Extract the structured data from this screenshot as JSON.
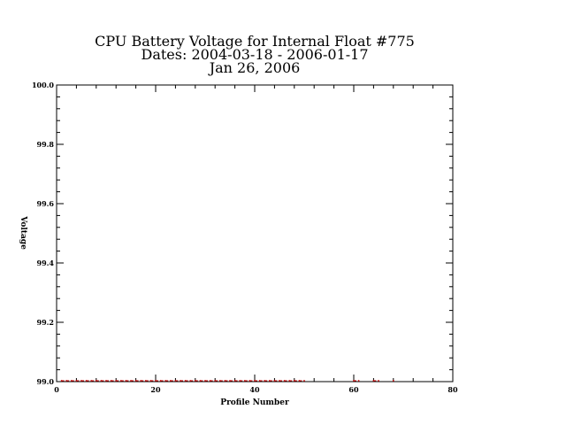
{
  "chart_data": {
    "type": "line",
    "title_lines": [
      "CPU Battery Voltage for Internal Float #775",
      "Dates:  2004-03-18 -  2006-01-17",
      "Jan 26, 2006"
    ],
    "xlabel": "Profile Number",
    "ylabel": "Voltage",
    "xlim": [
      0,
      80
    ],
    "ylim": [
      99.0,
      100.0
    ],
    "x_ticks": [
      0,
      20,
      40,
      60,
      80
    ],
    "x_tick_labels": [
      "0",
      "20",
      "40",
      "60",
      "80"
    ],
    "y_ticks": [
      99.0,
      99.2,
      99.4,
      99.6,
      99.8,
      100.0
    ],
    "y_tick_labels": [
      "99.0",
      "99.2",
      "99.4",
      "99.6",
      "99.8",
      "100.0"
    ],
    "grid": false,
    "series": [
      {
        "color": "#cc0000",
        "x": [
          1,
          2,
          3,
          4,
          5,
          6,
          7,
          8,
          9,
          10,
          11,
          12,
          13,
          14,
          15,
          16,
          17,
          18,
          19,
          20,
          21,
          22,
          23,
          24,
          25,
          26,
          27,
          28,
          29,
          30,
          31,
          32,
          33,
          34,
          35,
          36,
          37,
          38,
          39,
          40,
          41,
          42,
          43,
          44,
          45,
          46,
          47,
          48,
          49,
          50,
          60,
          61,
          64,
          65,
          68
        ],
        "y": [
          99.0,
          99.0,
          99.0,
          99.0,
          99.0,
          99.0,
          99.0,
          99.0,
          99.0,
          99.0,
          99.0,
          99.0,
          99.0,
          99.0,
          99.0,
          99.0,
          99.0,
          99.0,
          99.0,
          99.0,
          99.0,
          99.0,
          99.0,
          99.0,
          99.0,
          99.0,
          99.0,
          99.0,
          99.0,
          99.0,
          99.0,
          99.0,
          99.0,
          99.0,
          99.0,
          99.0,
          99.0,
          99.0,
          99.0,
          99.0,
          99.0,
          99.0,
          99.0,
          99.0,
          99.0,
          99.0,
          99.0,
          99.0,
          99.0,
          99.0,
          99.0,
          99.0,
          99.0,
          99.0,
          99.0
        ]
      }
    ]
  }
}
